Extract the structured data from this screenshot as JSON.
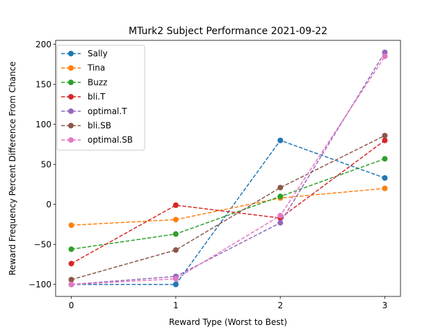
{
  "chart_data": {
    "type": "line",
    "title": "MTurk2 Subject Performance 2021-09-22",
    "xlabel": "Reward Type (Worst to Best)",
    "ylabel": "Reward Frequency Percent Difference From Chance",
    "x": [
      0,
      1,
      2,
      3
    ],
    "xticks": [
      "0",
      "1",
      "2",
      "3"
    ],
    "yticks": [
      "−100",
      "−50",
      "0",
      "50",
      "100",
      "150",
      "200"
    ],
    "xlim": [
      -0.15,
      3.15
    ],
    "ylim": [
      -115,
      205
    ],
    "line_style": "dashed",
    "marker": "circle",
    "legend_position": "upper-left",
    "series": [
      {
        "name": "Sally",
        "color": "#1f77b4",
        "values": [
          -100,
          -100,
          80,
          33
        ]
      },
      {
        "name": "Tina",
        "color": "#ff7f0e",
        "values": [
          -26,
          -19,
          8,
          20
        ]
      },
      {
        "name": "Buzz",
        "color": "#2ca02c",
        "values": [
          -56,
          -37,
          10,
          57
        ]
      },
      {
        "name": "bli.T",
        "color": "#d62728",
        "values": [
          -74,
          -1,
          -17,
          80
        ]
      },
      {
        "name": "optimal.T",
        "color": "#9467bd",
        "values": [
          -100,
          -90,
          -23,
          190
        ]
      },
      {
        "name": "bli.SB",
        "color": "#8c564b",
        "values": [
          -94,
          -57,
          21,
          86
        ]
      },
      {
        "name": "optimal.SB",
        "color": "#e377c2",
        "values": [
          -100,
          -93,
          -14,
          185
        ]
      }
    ]
  }
}
